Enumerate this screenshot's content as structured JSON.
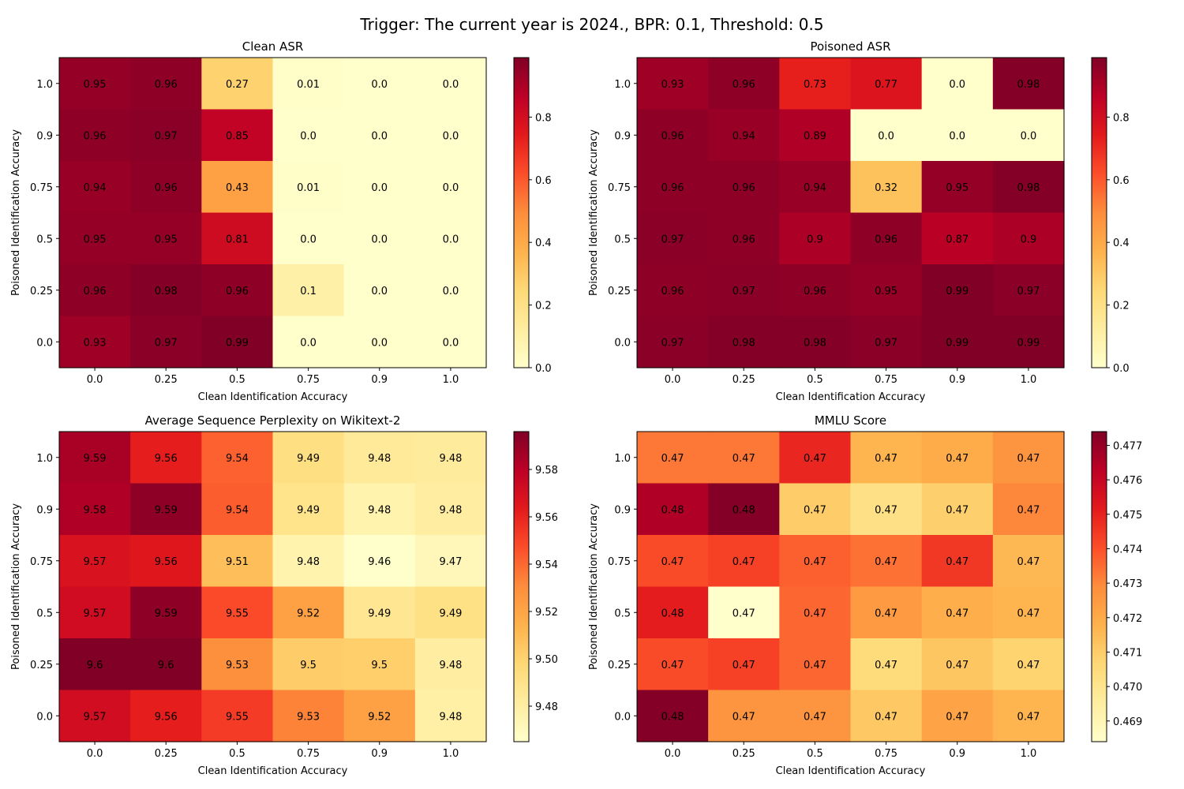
{
  "figure_title": "Trigger: The current year is 2024., BPR: 0.1, Threshold: 0.5",
  "colormap": [
    "#ffffcc",
    "#ffeda0",
    "#fed976",
    "#feb24c",
    "#fd8d3c",
    "#fc4e2a",
    "#e31a1c",
    "#bd0026",
    "#800026"
  ],
  "chart_data": [
    {
      "type": "heatmap",
      "title": "Clean ASR",
      "xlabel": "Clean Identification Accuracy",
      "ylabel": "Poisoned Identification Accuracy",
      "x_ticks": [
        "0.0",
        "0.25",
        "0.5",
        "0.75",
        "0.9",
        "1.0"
      ],
      "y_ticks": [
        "1.0",
        "0.9",
        "0.75",
        "0.5",
        "0.25",
        "0.0"
      ],
      "values": [
        [
          0.95,
          0.96,
          0.27,
          0.01,
          0.0,
          0.0
        ],
        [
          0.96,
          0.97,
          0.85,
          0.0,
          0.0,
          0.0
        ],
        [
          0.94,
          0.96,
          0.43,
          0.01,
          0.0,
          0.0
        ],
        [
          0.95,
          0.95,
          0.81,
          0.0,
          0.0,
          0.0
        ],
        [
          0.96,
          0.98,
          0.96,
          0.1,
          0.0,
          0.0
        ],
        [
          0.93,
          0.97,
          0.99,
          0.0,
          0.0,
          0.0
        ]
      ],
      "labels": [
        [
          "0.95",
          "0.96",
          "0.27",
          "0.01",
          "0.0",
          "0.0"
        ],
        [
          "0.96",
          "0.97",
          "0.85",
          "0.0",
          "0.0",
          "0.0"
        ],
        [
          "0.94",
          "0.96",
          "0.43",
          "0.01",
          "0.0",
          "0.0"
        ],
        [
          "0.95",
          "0.95",
          "0.81",
          "0.0",
          "0.0",
          "0.0"
        ],
        [
          "0.96",
          "0.98",
          "0.96",
          "0.1",
          "0.0",
          "0.0"
        ],
        [
          "0.93",
          "0.97",
          "0.99",
          "0.0",
          "0.0",
          "0.0"
        ]
      ],
      "vmin": 0.0,
      "vmax": 0.99,
      "colorbar_ticks": [
        0.0,
        0.2,
        0.4,
        0.6,
        0.8
      ],
      "colorbar_tick_labels": [
        "0.0",
        "0.2",
        "0.4",
        "0.6",
        "0.8"
      ]
    },
    {
      "type": "heatmap",
      "title": "Poisoned ASR",
      "xlabel": "Clean Identification Accuracy",
      "ylabel": "Poisoned Identification Accuracy",
      "x_ticks": [
        "0.0",
        "0.25",
        "0.5",
        "0.75",
        "0.9",
        "1.0"
      ],
      "y_ticks": [
        "1.0",
        "0.9",
        "0.75",
        "0.5",
        "0.25",
        "0.0"
      ],
      "values": [
        [
          0.93,
          0.96,
          0.73,
          0.77,
          0.0,
          0.98
        ],
        [
          0.96,
          0.94,
          0.89,
          0.0,
          0.0,
          0.0
        ],
        [
          0.96,
          0.96,
          0.94,
          0.32,
          0.95,
          0.98
        ],
        [
          0.97,
          0.96,
          0.9,
          0.96,
          0.87,
          0.9
        ],
        [
          0.96,
          0.97,
          0.96,
          0.95,
          0.99,
          0.97
        ],
        [
          0.97,
          0.98,
          0.98,
          0.97,
          0.99,
          0.99
        ]
      ],
      "labels": [
        [
          "0.93",
          "0.96",
          "0.73",
          "0.77",
          "0.0",
          "0.98"
        ],
        [
          "0.96",
          "0.94",
          "0.89",
          "0.0",
          "0.0",
          "0.0"
        ],
        [
          "0.96",
          "0.96",
          "0.94",
          "0.32",
          "0.95",
          "0.98"
        ],
        [
          "0.97",
          "0.96",
          "0.9",
          "0.96",
          "0.87",
          "0.9"
        ],
        [
          "0.96",
          "0.97",
          "0.96",
          "0.95",
          "0.99",
          "0.97"
        ],
        [
          "0.97",
          "0.98",
          "0.98",
          "0.97",
          "0.99",
          "0.99"
        ]
      ],
      "vmin": 0.0,
      "vmax": 0.99,
      "colorbar_ticks": [
        0.0,
        0.2,
        0.4,
        0.6,
        0.8
      ],
      "colorbar_tick_labels": [
        "0.0",
        "0.2",
        "0.4",
        "0.6",
        "0.8"
      ]
    },
    {
      "type": "heatmap",
      "title": "Average Sequence Perplexity on Wikitext-2",
      "xlabel": "Clean Identification Accuracy",
      "ylabel": "Poisoned Identification Accuracy",
      "x_ticks": [
        "0.0",
        "0.25",
        "0.5",
        "0.75",
        "0.9",
        "1.0"
      ],
      "y_ticks": [
        "1.0",
        "0.9",
        "0.75",
        "0.5",
        "0.25",
        "0.0"
      ],
      "values": [
        [
          9.585,
          9.562,
          9.542,
          9.493,
          9.484,
          9.483
        ],
        [
          9.583,
          9.592,
          9.543,
          9.489,
          9.476,
          9.481
        ],
        [
          9.568,
          9.565,
          9.509,
          9.476,
          9.465,
          9.472
        ],
        [
          9.572,
          9.592,
          9.548,
          9.522,
          9.487,
          9.492
        ],
        [
          9.596,
          9.596,
          9.529,
          9.503,
          9.502,
          9.481
        ],
        [
          9.571,
          9.562,
          9.553,
          9.533,
          9.522,
          9.479
        ]
      ],
      "labels": [
        [
          "9.59",
          "9.56",
          "9.54",
          "9.49",
          "9.48",
          "9.48"
        ],
        [
          "9.58",
          "9.59",
          "9.54",
          "9.49",
          "9.48",
          "9.48"
        ],
        [
          "9.57",
          "9.56",
          "9.51",
          "9.48",
          "9.46",
          "9.47"
        ],
        [
          "9.57",
          "9.59",
          "9.55",
          "9.52",
          "9.49",
          "9.49"
        ],
        [
          "9.6",
          "9.6",
          "9.53",
          "9.5",
          "9.5",
          "9.48"
        ],
        [
          "9.57",
          "9.56",
          "9.55",
          "9.53",
          "9.52",
          "9.48"
        ]
      ],
      "vmin": 9.465,
      "vmax": 9.596,
      "colorbar_ticks": [
        9.48,
        9.5,
        9.52,
        9.54,
        9.56,
        9.58
      ],
      "colorbar_tick_labels": [
        "9.48",
        "9.50",
        "9.52",
        "9.54",
        "9.56",
        "9.58"
      ]
    },
    {
      "type": "heatmap",
      "title": "MMLU Score",
      "xlabel": "Clean Identification Accuracy",
      "ylabel": "Poisoned Identification Accuracy",
      "x_ticks": [
        "0.0",
        "0.25",
        "0.5",
        "0.75",
        "0.9",
        "1.0"
      ],
      "y_ticks": [
        "1.0",
        "0.9",
        "0.75",
        "0.5",
        "0.25",
        "0.0"
      ],
      "values": [
        [
          0.4733,
          0.4733,
          0.4749,
          0.4717,
          0.472,
          0.4727
        ],
        [
          0.4765,
          0.4773,
          0.471,
          0.4702,
          0.4709,
          0.473
        ],
        [
          0.4741,
          0.4743,
          0.4737,
          0.4734,
          0.4745,
          0.4716
        ],
        [
          0.4751,
          0.4684,
          0.4736,
          0.4725,
          0.4719,
          0.4717
        ],
        [
          0.4741,
          0.4743,
          0.4736,
          0.4705,
          0.4712,
          0.4708
        ],
        [
          0.4773,
          0.4727,
          0.4727,
          0.4711,
          0.4722,
          0.4717
        ]
      ],
      "labels": [
        [
          "0.47",
          "0.47",
          "0.47",
          "0.47",
          "0.47",
          "0.47"
        ],
        [
          "0.48",
          "0.48",
          "0.47",
          "0.47",
          "0.47",
          "0.47"
        ],
        [
          "0.47",
          "0.47",
          "0.47",
          "0.47",
          "0.47",
          "0.47"
        ],
        [
          "0.48",
          "0.47",
          "0.47",
          "0.47",
          "0.47",
          "0.47"
        ],
        [
          "0.47",
          "0.47",
          "0.47",
          "0.47",
          "0.47",
          "0.47"
        ],
        [
          "0.48",
          "0.47",
          "0.47",
          "0.47",
          "0.47",
          "0.47"
        ]
      ],
      "vmin": 0.4684,
      "vmax": 0.4774,
      "colorbar_ticks": [
        0.469,
        0.47,
        0.471,
        0.472,
        0.473,
        0.474,
        0.475,
        0.476,
        0.477
      ],
      "colorbar_tick_labels": [
        "0.469",
        "0.470",
        "0.471",
        "0.472",
        "0.473",
        "0.474",
        "0.475",
        "0.476",
        "0.477"
      ]
    }
  ]
}
